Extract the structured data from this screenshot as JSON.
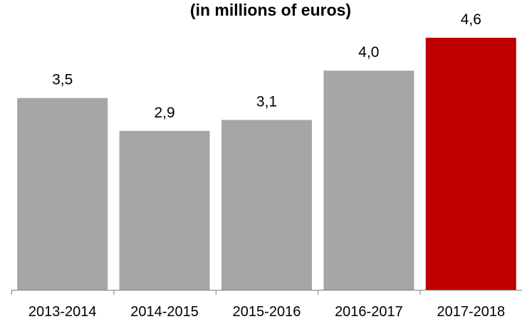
{
  "chart_data": {
    "type": "bar",
    "title": "(in millions of euros)",
    "categories": [
      "2013-2014",
      "2014-2015",
      "2015-2016",
      "2016-2017",
      "2017-2018"
    ],
    "values": [
      3.5,
      2.9,
      3.1,
      4.0,
      4.6
    ],
    "value_labels": [
      "3,5",
      "2,9",
      "3,1",
      "4,0",
      "4,6"
    ],
    "ylim": [
      0,
      4.6
    ],
    "grid": false,
    "legend": "none",
    "colors": {
      "default_bar": "#a6a6a6",
      "highlight_bar": "#c00000",
      "axis": "#808080"
    },
    "highlight_index": 4
  }
}
